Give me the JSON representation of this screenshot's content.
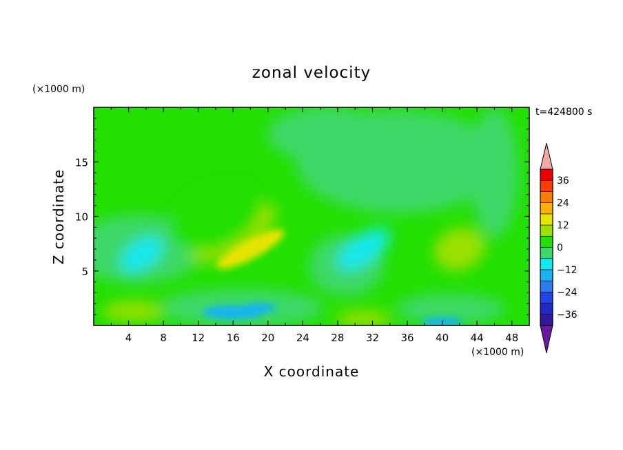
{
  "chart_data": {
    "type": "heatmap",
    "title": "zonal velocity",
    "xlabel": "X coordinate",
    "ylabel": "Z coordinate",
    "x_unit": "(×1000 m)",
    "y_unit": "(×1000 m)",
    "time_label": "t=424800 s",
    "xlim": [
      0,
      50
    ],
    "ylim": [
      0,
      20
    ],
    "x_ticks": [
      "4",
      "8",
      "12",
      "16",
      "20",
      "24",
      "28",
      "32",
      "36",
      "40",
      "44",
      "48"
    ],
    "y_ticks": [
      "5",
      "10",
      "15"
    ],
    "colorbar": {
      "levels": [
        -42,
        -36,
        -30,
        -24,
        -18,
        -12,
        -6,
        0,
        6,
        12,
        18,
        24,
        30,
        36,
        42
      ],
      "colors": [
        "#6a1aa0",
        "#33179e",
        "#2128c8",
        "#1f46e6",
        "#2a7df0",
        "#19b3f2",
        "#12e8ee",
        "#3cd868",
        "#22e000",
        "#9be000",
        "#e6e400",
        "#ffb000",
        "#ff7e00",
        "#ff3a00",
        "#ee0000",
        "#f4a8a8"
      ],
      "labels": [
        "36",
        "24",
        "12",
        "0",
        "−12",
        "−24",
        "−36"
      ],
      "extend": "both"
    },
    "field_features": [
      {
        "x": 18,
        "z": 7.0,
        "value": 14
      },
      {
        "x": 16,
        "z": 8.5,
        "value": 9
      },
      {
        "x": 14,
        "z": 10.0,
        "value": 4
      },
      {
        "x": 4.5,
        "z": 1.3,
        "value": 9
      },
      {
        "x": 31,
        "z": 0.6,
        "value": 11
      },
      {
        "x": 42,
        "z": 7.0,
        "value": 7
      },
      {
        "x": 31,
        "z": 7.0,
        "value": -10
      },
      {
        "x": 5.5,
        "z": 6.5,
        "value": -8
      },
      {
        "x": 16,
        "z": 1.2,
        "value": -13
      },
      {
        "x": 19,
        "z": 1.6,
        "value": -17
      },
      {
        "x": 40,
        "z": 0.3,
        "value": -15
      },
      {
        "x": 34,
        "z": 13.5,
        "value": -3
      },
      {
        "x": 35,
        "z": 18.0,
        "value": -2
      },
      {
        "x": 46,
        "z": 15.0,
        "value": -1.5
      }
    ]
  }
}
